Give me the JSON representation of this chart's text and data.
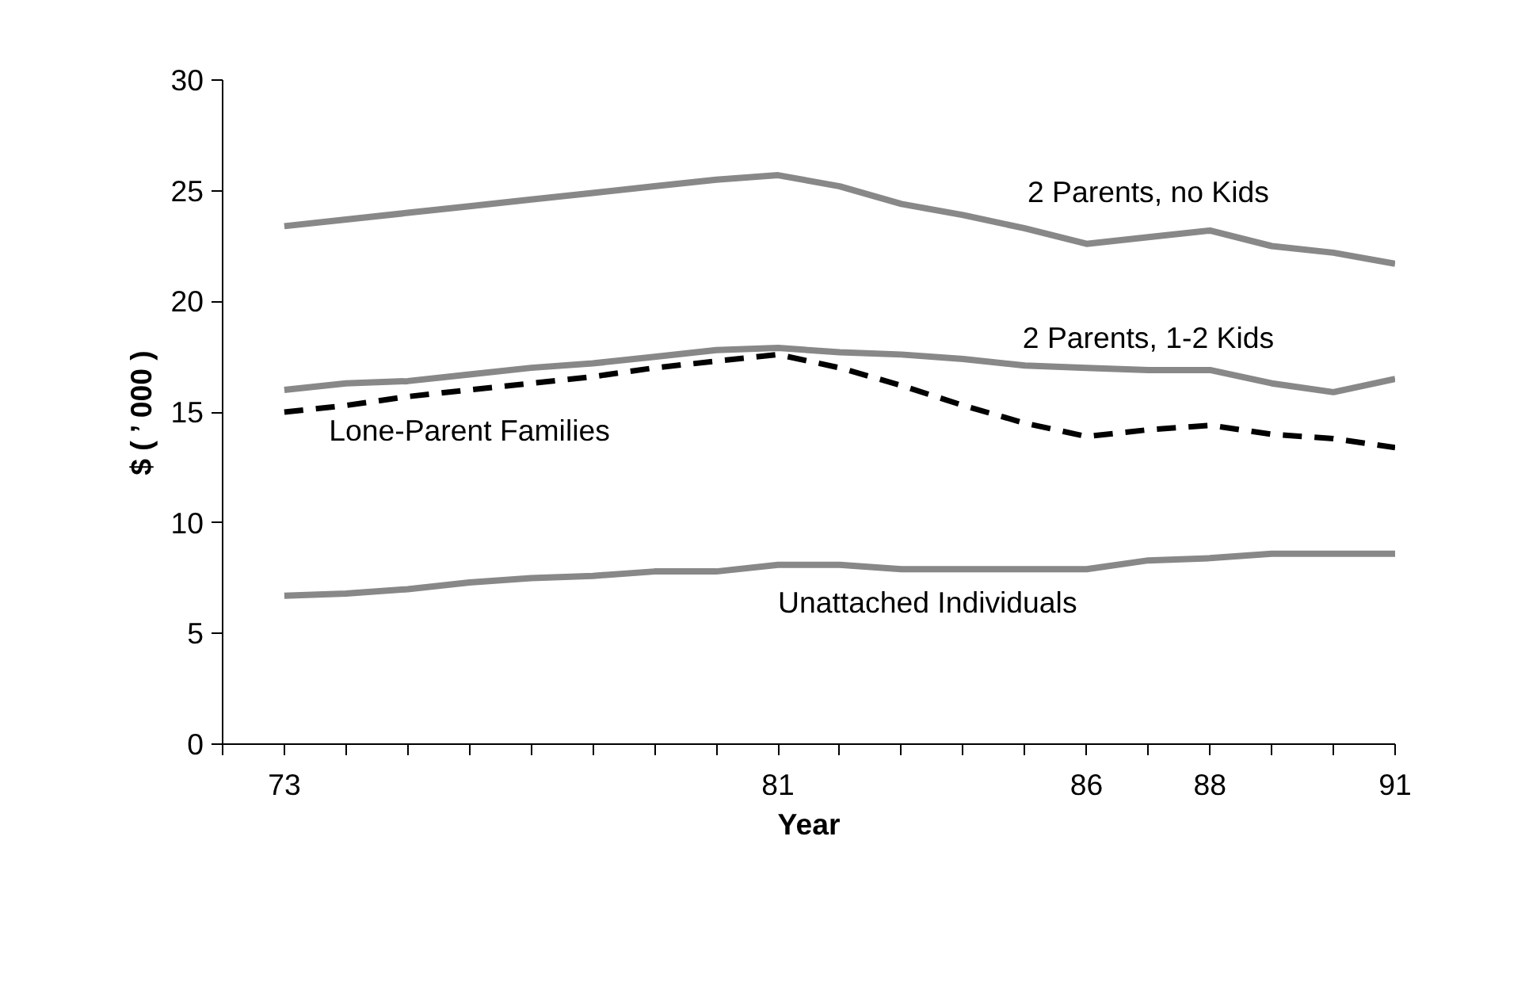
{
  "chart_data": {
    "type": "line",
    "xlabel": "Year",
    "ylabel": "$ ( ’ 000 )",
    "x": [
      73,
      74,
      75,
      76,
      77,
      78,
      79,
      80,
      81,
      82,
      83,
      84,
      85,
      86,
      87,
      88,
      89,
      90,
      91
    ],
    "xlim": [
      72,
      91
    ],
    "xticks": [
      {
        "value": 72,
        "label": null
      },
      73,
      {
        "value": 74,
        "label": null
      },
      {
        "value": 75,
        "label": null
      },
      {
        "value": 76,
        "label": null
      },
      {
        "value": 77,
        "label": null
      },
      {
        "value": 78,
        "label": null
      },
      {
        "value": 79,
        "label": null
      },
      {
        "value": 80,
        "label": null
      },
      81,
      {
        "value": 82,
        "label": null
      },
      {
        "value": 83,
        "label": null
      },
      {
        "value": 84,
        "label": null
      },
      {
        "value": 85,
        "label": null
      },
      86,
      {
        "value": 87,
        "label": null
      },
      88,
      {
        "value": 89,
        "label": null
      },
      {
        "value": 90,
        "label": null
      },
      91
    ],
    "ylim": [
      0,
      30
    ],
    "yticks": [
      0,
      5,
      10,
      15,
      20,
      25,
      30
    ],
    "grid": false,
    "legend": false,
    "marker": "none",
    "series": [
      {
        "name": "2 Parents, no Kids",
        "color": "#888888",
        "line_style": "solid",
        "values": [
          23.4,
          23.7,
          24.0,
          24.3,
          24.6,
          24.9,
          25.2,
          25.5,
          25.7,
          25.2,
          24.4,
          23.9,
          23.3,
          22.6,
          22.9,
          23.2,
          22.5,
          22.2,
          21.7
        ]
      },
      {
        "name": "2 Parents, 1-2 Kids",
        "color": "#888888",
        "line_style": "solid",
        "values": [
          16.0,
          16.3,
          16.4,
          16.7,
          17.0,
          17.2,
          17.5,
          17.8,
          17.9,
          17.7,
          17.6,
          17.4,
          17.1,
          17.0,
          16.9,
          16.9,
          16.3,
          15.9,
          16.5
        ]
      },
      {
        "name": "Lone-Parent Families",
        "color": "#000000",
        "line_style": "dashed",
        "values": [
          15.0,
          15.3,
          15.7,
          16.0,
          16.3,
          16.6,
          17.0,
          17.3,
          17.6,
          17.0,
          16.2,
          15.3,
          14.5,
          13.9,
          14.2,
          14.4,
          14.0,
          13.8,
          13.4
        ]
      },
      {
        "name": "Unattached Individuals",
        "color": "#888888",
        "line_style": "solid",
        "values": [
          6.7,
          6.8,
          7.0,
          7.3,
          7.5,
          7.6,
          7.8,
          7.8,
          8.1,
          8.1,
          7.9,
          7.9,
          7.9,
          7.9,
          8.3,
          8.4,
          8.6,
          8.6,
          8.6
        ]
      }
    ]
  }
}
